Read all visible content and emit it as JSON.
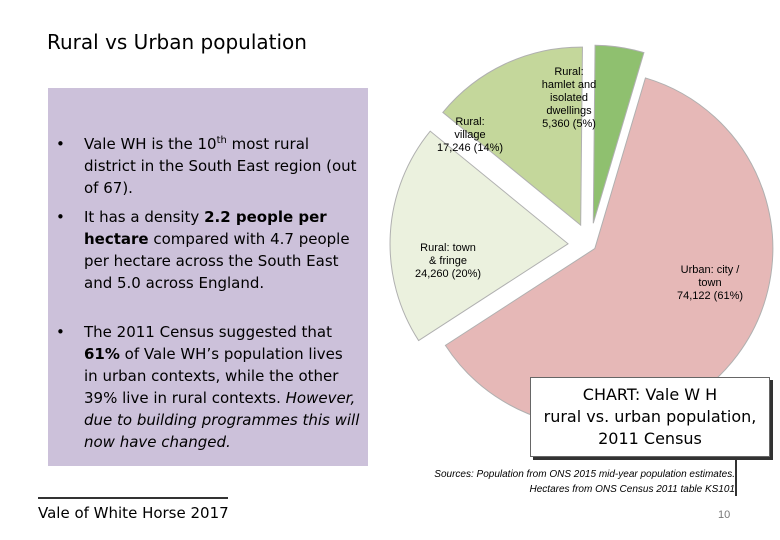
{
  "slide": {
    "title": "Rural vs Urban population",
    "bullets": [
      {
        "pre": "Vale WH is the 10",
        "sup": "th",
        "post": " most rural district in the South East region (out of 67)."
      },
      {
        "pre": "It has a density ",
        "bold": "2.2 people per hectare",
        "post": " compared with 4.7 people per hectare across the South East and 5.0 across England."
      },
      {
        "pre": "The 2011 Census suggested that ",
        "bold": "61%",
        "mid": " of Vale WH’s population  lives in urban contexts, while the other 39% live in rural contexts. ",
        "italic": "However, due to building programmes this will now have changed."
      }
    ],
    "bullet_marker": "•",
    "caption": [
      "CHART: Vale W H",
      "rural vs. urban population,",
      "2011 Census"
    ],
    "sources": [
      "Sources: Population from ONS 2015 mid-year population estimates.",
      "Hectares from ONS Census 2011 table KS101"
    ],
    "footer": "Vale of White Horse 2017",
    "page_number": "10"
  },
  "chart_data": {
    "type": "pie",
    "slices": [
      {
        "label_lines": [
          "Rural:",
          "hamlet and",
          "isolated",
          "dwellings",
          "5,360 (5%)"
        ],
        "value": 5360,
        "percent": 5,
        "color": "#8fc06f"
      },
      {
        "label_lines": [
          "Urban: city /",
          "town",
          "74,122 (61%)"
        ],
        "value": 74122,
        "percent": 61,
        "color": "#e6b8b7"
      },
      {
        "label_lines": [
          "Rural: town",
          "& fringe",
          "24,260 (20%)"
        ],
        "value": 24260,
        "percent": 20,
        "color": "#ebf1de"
      },
      {
        "label_lines": [
          "Rural:",
          "village",
          "17,246 (14%)"
        ],
        "value": 17246,
        "percent": 14,
        "color": "#c4d79b"
      }
    ],
    "exploded": true
  }
}
